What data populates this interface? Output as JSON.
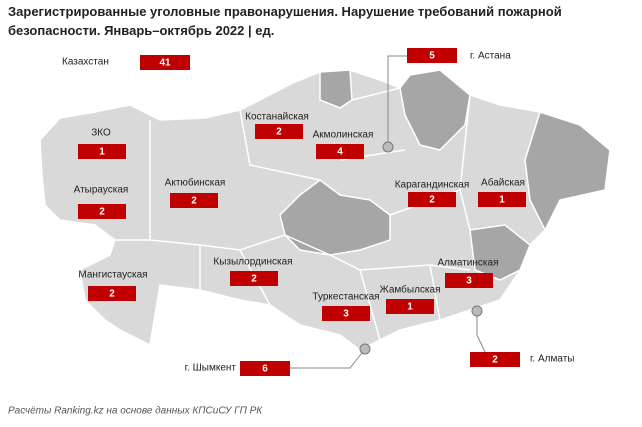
{
  "title": "Зарегистрированные уголовные правонарушения. Нарушение требований пожарной безопасности. Январь–октябрь 2022 | ед.",
  "total": {
    "label": "Казахстан",
    "value": "41"
  },
  "regions": [
    {
      "label": "ЗКО",
      "value": "1"
    },
    {
      "label": "Атырауская",
      "value": "2"
    },
    {
      "label": "Актюбинская",
      "value": "2"
    },
    {
      "label": "Костанайская",
      "value": "2"
    },
    {
      "label": "Акмолинская",
      "value": "4"
    },
    {
      "label": "Карагандинская",
      "value": "2"
    },
    {
      "label": "Абайская",
      "value": "1"
    },
    {
      "label": "Кызылординская",
      "value": "2"
    },
    {
      "label": "Мангистауская",
      "value": "2"
    },
    {
      "label": "Алматинская",
      "value": "3"
    },
    {
      "label": "Жамбылская",
      "value": "1"
    },
    {
      "label": "Туркестанская",
      "value": "3"
    }
  ],
  "cities": [
    {
      "label": "г. Астана",
      "value": "5"
    },
    {
      "label": "г. Шымкент",
      "value": "6"
    },
    {
      "label": "г. Алматы",
      "value": "2"
    }
  ],
  "source": "Расчёты Ranking.kz на основе данных КПСиСУ ГП РК"
}
